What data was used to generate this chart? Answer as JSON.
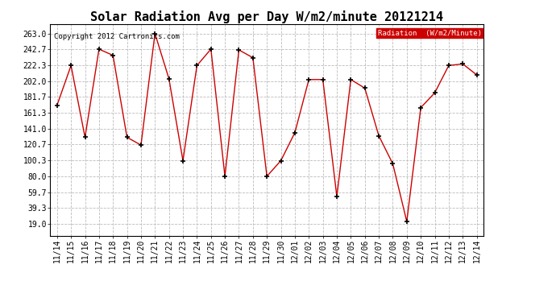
{
  "title": "Solar Radiation Avg per Day W/m2/minute 20121214",
  "copyright_text": "Copyright 2012 Cartronics.com",
  "legend_label": "Radiation  (W/m2/Minute)",
  "labels": [
    "11/14",
    "11/15",
    "11/16",
    "11/17",
    "11/18",
    "11/19",
    "11/20",
    "11/21",
    "11/22",
    "11/23",
    "11/24",
    "11/25",
    "11/26",
    "11/27",
    "11/28",
    "11/29",
    "11/30",
    "12/01",
    "12/02",
    "12/03",
    "12/04",
    "12/05",
    "12/06",
    "12/07",
    "12/08",
    "12/09",
    "12/10",
    "12/11",
    "12/12",
    "12/13",
    "12/14"
  ],
  "values": [
    171.0,
    222.0,
    130.0,
    243.0,
    235.0,
    130.0,
    120.0,
    263.0,
    205.0,
    100.0,
    222.0,
    243.0,
    80.0,
    242.0,
    232.0,
    80.0,
    100.0,
    136.0,
    204.0,
    204.0,
    54.0,
    204.0,
    193.0,
    132.0,
    96.0,
    22.0,
    168.0,
    187.0,
    222.0,
    224.0,
    210.0
  ],
  "line_color": "#cc0000",
  "marker_color": "#000000",
  "bg_color": "#ffffff",
  "grid_color": "#bbbbbb",
  "yticks": [
    19.0,
    39.3,
    59.7,
    80.0,
    100.3,
    120.7,
    141.0,
    161.3,
    181.7,
    202.0,
    222.3,
    242.7,
    263.0
  ],
  "ylim": [
    4.0,
    275.0
  ],
  "legend_bg": "#cc0000",
  "legend_text_color": "#ffffff",
  "title_fontsize": 11,
  "tick_fontsize": 7,
  "copyright_fontsize": 6.5
}
